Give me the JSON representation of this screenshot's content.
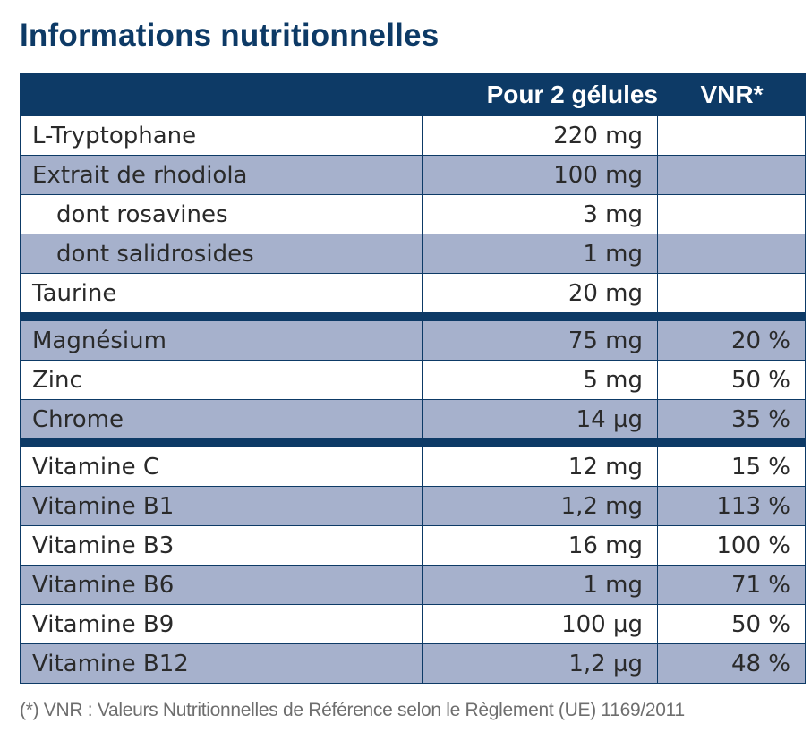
{
  "title": "Informations nutritionnelles",
  "header": {
    "col1": "",
    "col2": "Pour 2 gélules",
    "col3": "VNR*"
  },
  "groups": [
    [
      {
        "name": "L-Tryptophane",
        "amount": "220 mg",
        "vnr": "",
        "indent": false
      },
      {
        "name": "Extrait de rhodiola",
        "amount": "100 mg",
        "vnr": "",
        "indent": false
      },
      {
        "name": "dont rosavines",
        "amount": "3 mg",
        "vnr": "",
        "indent": true
      },
      {
        "name": "dont salidrosides",
        "amount": "1 mg",
        "vnr": "",
        "indent": true
      },
      {
        "name": "Taurine",
        "amount": "20 mg",
        "vnr": "",
        "indent": false
      }
    ],
    [
      {
        "name": "Magnésium",
        "amount": "75 mg",
        "vnr": "20 %",
        "indent": false
      },
      {
        "name": "Zinc",
        "amount": "5 mg",
        "vnr": "50 %",
        "indent": false
      },
      {
        "name": "Chrome",
        "amount": "14 µg",
        "vnr": "35 %",
        "indent": false
      }
    ],
    [
      {
        "name": "Vitamine C",
        "amount": "12 mg",
        "vnr": "15 %",
        "indent": false
      },
      {
        "name": "Vitamine B1",
        "amount": "1,2 mg",
        "vnr": "113 %",
        "indent": false
      },
      {
        "name": "Vitamine B3",
        "amount": "16 mg",
        "vnr": "100 %",
        "indent": false
      },
      {
        "name": "Vitamine B6",
        "amount": "1 mg",
        "vnr": "71 %",
        "indent": false
      },
      {
        "name": "Vitamine B9",
        "amount": "100 µg",
        "vnr": "50 %",
        "indent": false
      },
      {
        "name": "Vitamine B12",
        "amount": "1,2 µg",
        "vnr": "48 %",
        "indent": false
      }
    ]
  ],
  "footnote": "(*) VNR : Valeurs Nutritionnelles de Référence selon le Règlement (UE) 1169/2011",
  "colors": {
    "header_bg": "#0d3a66",
    "shaded_row": "#a6b1cc",
    "title": "#0d3a66"
  }
}
